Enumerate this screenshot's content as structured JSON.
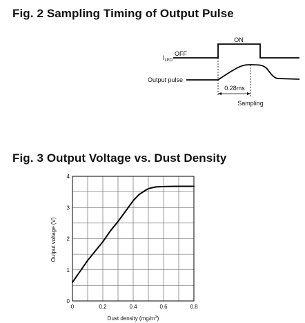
{
  "fig2": {
    "title": "Fig. 2 Sampling Timing of Output Pulse",
    "on_label": "ON",
    "off_label": "OFF",
    "iled_main": "I",
    "iled_sub": "LED",
    "output_pulse_label": "Output pulse",
    "delay_label": "0.28ms",
    "sampling_label": "Sampling"
  },
  "fig3": {
    "title": "Fig. 3  Output Voltage vs. Dust Density"
  },
  "chart_data": {
    "type": "line",
    "title": "",
    "xlabel": "Dust density (mg/m",
    "xlabel_sup": "3",
    "xlabel_tail": ")",
    "ylabel": "Output voltage (V)",
    "xlim": [
      0,
      0.8
    ],
    "ylim": [
      0,
      4
    ],
    "grid": true,
    "x_ticks": [
      "0",
      "0.2",
      "0.4",
      "0.6",
      "0.8"
    ],
    "y_ticks": [
      "0",
      "1",
      "2",
      "3",
      "4"
    ],
    "series": [
      {
        "color": "#000000",
        "x": [
          0,
          0.05,
          0.1,
          0.15,
          0.2,
          0.25,
          0.3,
          0.35,
          0.4,
          0.44,
          0.48,
          0.5,
          0.52,
          0.55,
          0.6,
          0.7,
          0.8
        ],
        "values": [
          0.6,
          0.95,
          1.3,
          1.6,
          1.9,
          2.25,
          2.55,
          2.88,
          3.22,
          3.42,
          3.55,
          3.6,
          3.63,
          3.66,
          3.67,
          3.68,
          3.68
        ]
      }
    ]
  }
}
